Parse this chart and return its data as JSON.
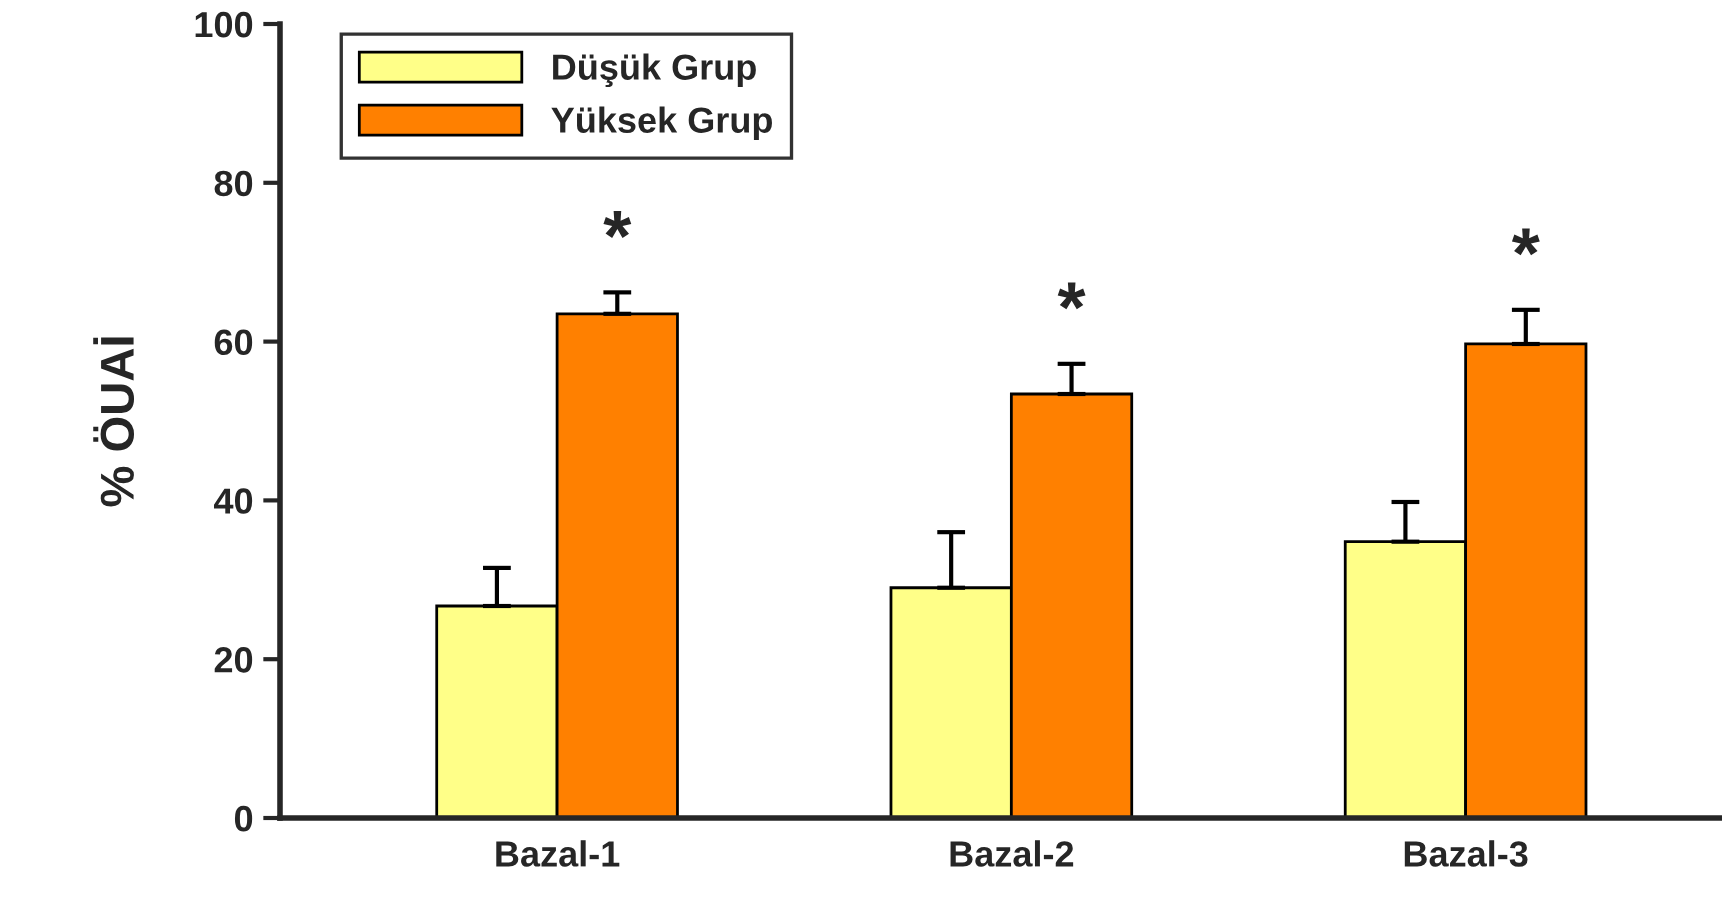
{
  "chart_data": {
    "type": "bar",
    "ylabel": "% ÖUAİ",
    "categories": [
      "Bazal-1",
      "Bazal-2",
      "Bazal-3"
    ],
    "series": [
      {
        "name": "Düşük Grup",
        "color": "#ffff88",
        "values": [
          26.7,
          29,
          34.8
        ],
        "errors": [
          [
            26.7,
            31.5
          ],
          [
            29,
            36
          ],
          [
            34.8,
            39.8
          ]
        ]
      },
      {
        "name": "Yüksek Grup",
        "color": "#ff8000",
        "values": [
          63.5,
          53.4,
          59.7
        ],
        "errors": [
          [
            63.5,
            66.2
          ],
          [
            53.4,
            57.2
          ],
          [
            59.7,
            64
          ]
        ]
      }
    ],
    "ylim": [
      0,
      100
    ],
    "yticks": [
      0,
      20,
      40,
      60,
      80,
      100
    ],
    "grid": false,
    "legend": "top left",
    "annotations": [
      "*",
      "*",
      "*"
    ]
  }
}
